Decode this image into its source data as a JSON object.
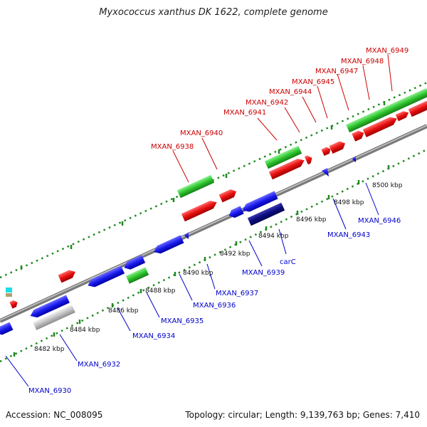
{
  "title": "Myxococcus xanthus DK 1622, complete genome",
  "footer": {
    "accession": "Accession: NC_008095",
    "summary": "Topology: circular; Length: 9,139,763 bp; Genes: 7,410"
  },
  "ticks": [
    "8482 kbp",
    "8484 kbp",
    "8486 kbp",
    "8488 kbp",
    "8490 kbp",
    "8492 kbp",
    "8494 kbp",
    "8496 kbp",
    "8498 kbp",
    "8500 kbp"
  ],
  "upper_labels": [
    "MXAN_6938",
    "MXAN_6940",
    "MXAN_6941",
    "MXAN_6942",
    "MXAN_6944",
    "MXAN_6945",
    "MXAN_6947",
    "MXAN_6948",
    "MXAN_6949"
  ],
  "lower_labels": [
    "MXAN_6930",
    "MXAN_6932",
    "MXAN_6934",
    "MXAN_6935",
    "MXAN_6936",
    "MXAN_6937",
    "MXAN_6939",
    "carC",
    "MXAN_6943",
    "MXAN_6946"
  ],
  "colors": {
    "forward_cds": "#e81010",
    "reverse_cds": "#1a1aee",
    "rna": "#2ec42e",
    "other": "#c0c0c0",
    "dark": "#0b0b80",
    "label_upper": "#cc0000",
    "label_lower": "#0000cc",
    "backbone": "#8a8a8a",
    "dots": "#1f8a1f"
  }
}
